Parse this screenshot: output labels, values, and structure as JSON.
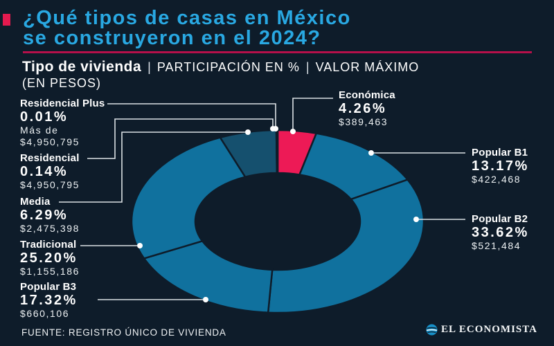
{
  "page": {
    "background": "#0e1c2a"
  },
  "header": {
    "title_line1": "¿Qué tipos de casas en México",
    "title_line2": "se construyeron en el 2024?",
    "title_color": "#29a8e2",
    "legend_col1": "Tipo de vivienda",
    "legend_sep": "|",
    "legend_col2": "PARTICIPACIÓN EN %",
    "legend_col3": "VALOR MÁXIMO",
    "legend_col3_line2": "(EN PESOS)"
  },
  "chart_data": {
    "type": "pie",
    "subtype": "donut",
    "title": "¿Qué tipos de casas en México se construyeron en el 2024?",
    "units": {
      "share": "PARTICIPACIÓN EN %",
      "value": "VALOR MÁXIMO (EN PESOS)"
    },
    "start_angle_deg": 0,
    "direction": "clockwise",
    "segments": [
      {
        "label": "Económica",
        "pct": 4.26,
        "pct_label": "4.26%",
        "value_label": "$389,463",
        "color": "#ed1a56"
      },
      {
        "label": "Popular B1",
        "pct": 13.17,
        "pct_label": "13.17%",
        "value_label": "$422,468",
        "color": "#10719e"
      },
      {
        "label": "Popular B2",
        "pct": 33.62,
        "pct_label": "33.62%",
        "value_label": "$521,484",
        "color": "#10719e"
      },
      {
        "label": "Popular B3",
        "pct": 17.32,
        "pct_label": "17.32%",
        "value_label": "$660,106",
        "color": "#10719e"
      },
      {
        "label": "Tradicional",
        "pct": 25.2,
        "pct_label": "25.20%",
        "value_label": "$1,155,186",
        "color": "#10719e"
      },
      {
        "label": "Media",
        "pct": 6.29,
        "pct_label": "6.29%",
        "value_label": "$2,475,398",
        "color": "#15506e"
      },
      {
        "label": "Residencial",
        "pct": 0.14,
        "pct_label": "0.14%",
        "value_label": "$4,950,795",
        "color": "#10719e"
      },
      {
        "label": "Residencial Plus",
        "pct": 0.01,
        "pct_label": "0.01%",
        "value_prefix": "Más de",
        "value_label": "$4,950,795",
        "color": "#10719e"
      }
    ]
  },
  "footer": {
    "source": "FUENTE: REGISTRO ÚNICO DE VIVIENDA",
    "brand": "EL ECONOMISTA"
  },
  "colors": {
    "background": "#0e1c2a",
    "teal": "#10719e",
    "teal_dark": "#15506e",
    "pink": "#ed1a56",
    "divider": "#b6104a",
    "accent_square": "#e41a4f",
    "title": "#29a8e2",
    "leader_line": "#dce1e5",
    "dot": "#ffffff"
  }
}
